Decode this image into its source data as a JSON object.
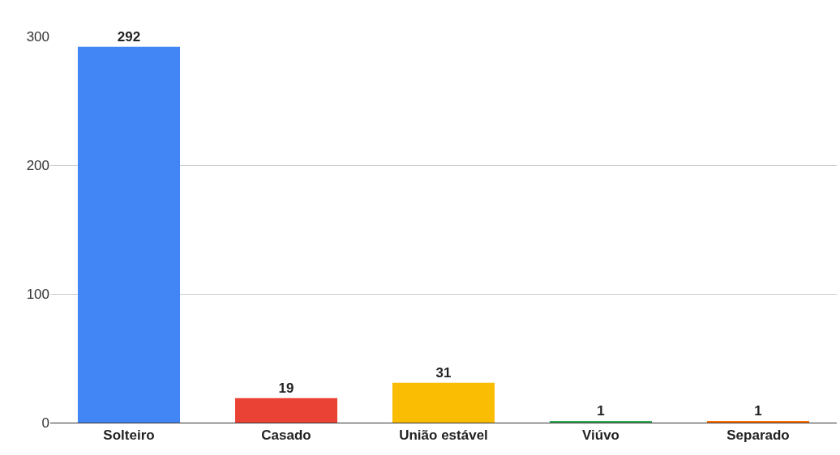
{
  "chart_data": {
    "type": "bar",
    "categories": [
      "Solteiro",
      "Casado",
      "União estável",
      "Viúvo",
      "Separado"
    ],
    "values": [
      292,
      19,
      31,
      1,
      1
    ],
    "colors": [
      "#4285f4",
      "#ea4335",
      "#fbbc04",
      "#34a853",
      "#ff6d01"
    ],
    "ylim": [
      0,
      300
    ],
    "yticks": [
      0,
      100,
      200,
      300
    ],
    "grid": "y",
    "data_labels": true,
    "legend": false
  }
}
